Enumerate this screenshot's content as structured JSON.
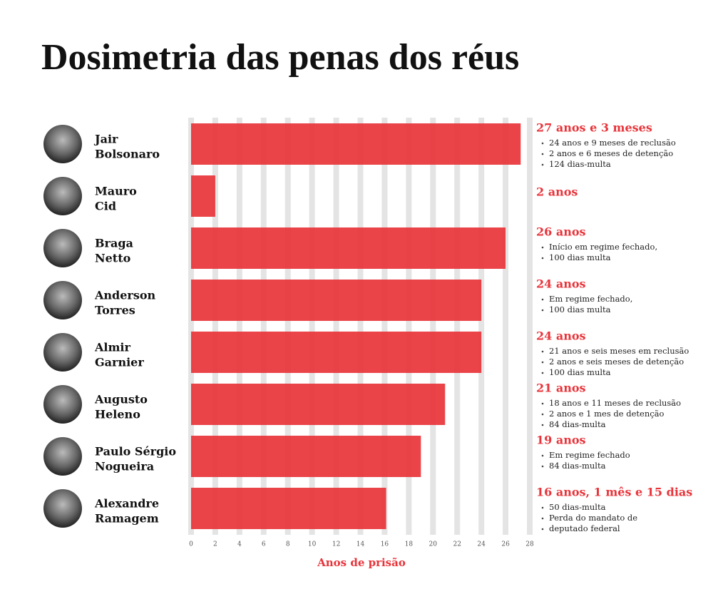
{
  "chart_data": {
    "type": "bar",
    "orientation": "horizontal",
    "title": "Dosimetria das penas dos réus",
    "x_label": "Anos de prisão",
    "categories": [
      [
        "Jair",
        "Bolsonaro"
      ],
      [
        "Mauro",
        "Cid"
      ],
      [
        "Braga",
        "Netto"
      ],
      [
        "Anderson",
        "Torres"
      ],
      [
        "Almir",
        "Garnier"
      ],
      [
        "Augusto",
        "Heleno"
      ],
      [
        "Paulo Sérgio",
        "Nogueira"
      ],
      [
        "Alexandre",
        "Ramagem"
      ]
    ],
    "values": [
      27.25,
      2,
      26,
      24,
      24,
      21,
      19,
      16.125
    ],
    "color": "#e8343a",
    "xlim": [
      0,
      28
    ],
    "xticks": [
      0,
      2,
      4,
      6,
      8,
      10,
      12,
      14,
      16,
      18,
      20,
      22,
      24,
      26,
      28
    ],
    "grid": true,
    "annotations": [
      {
        "title": "27 anos e 3 meses",
        "items": [
          "24 anos e 9 meses de reclusão",
          "2 anos e 6 meses de detenção",
          "124 dias-multa"
        ]
      },
      {
        "title": "2 anos",
        "items": []
      },
      {
        "title": "26 anos",
        "items": [
          "Início em regime fechado,",
          "100 dias multa"
        ]
      },
      {
        "title": "24 anos",
        "items": [
          "Em regime fechado,",
          "100 dias multa"
        ]
      },
      {
        "title": "24 anos",
        "items": [
          "21 anos e seis meses em reclusão",
          "2 anos e seis meses de detenção",
          "100 dias multa"
        ]
      },
      {
        "title": "21 anos",
        "items": [
          "18 anos e 11 meses de reclusão",
          "2 anos e 1 mes de detenção",
          "84 dias-multa"
        ]
      },
      {
        "title": "19 anos",
        "items": [
          "Em regime fechado",
          "84 dias-multa"
        ]
      },
      {
        "title": "16 anos, 1 mês e 15 dias",
        "items": [
          "50 dias-multa",
          "Perda do mandato de",
          "deputado federal"
        ]
      }
    ]
  }
}
